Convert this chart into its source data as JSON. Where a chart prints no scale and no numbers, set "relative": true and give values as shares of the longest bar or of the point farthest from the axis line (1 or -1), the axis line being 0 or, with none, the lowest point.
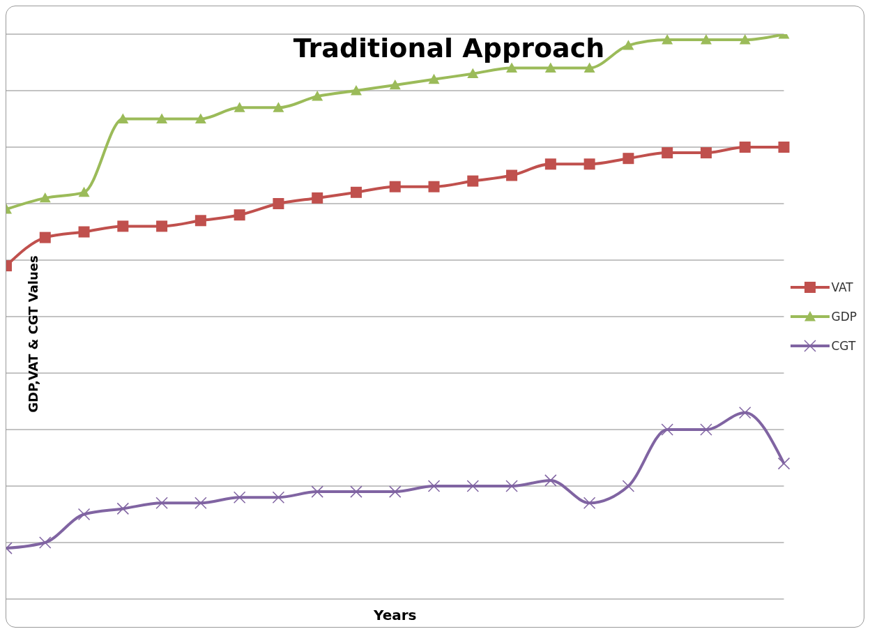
{
  "chart_data": {
    "type": "line",
    "title": "Traditional Approach",
    "xlabel": "Years",
    "ylabel": "GDP,VAT & CGT Values",
    "relative": true,
    "grid": "y",
    "legend": "right",
    "line_style": "solid",
    "categories": [
      null,
      null,
      null,
      null,
      null,
      null,
      null,
      null,
      null,
      null,
      null,
      null,
      null,
      null,
      null,
      null,
      null,
      null,
      null,
      null,
      null
    ],
    "series": [
      {
        "name": "VAT",
        "color": "#c0504d",
        "marker": "square",
        "values": [
          0.59,
          0.64,
          0.65,
          0.66,
          0.66,
          0.67,
          0.68,
          0.7,
          0.71,
          0.72,
          0.73,
          0.73,
          0.74,
          0.75,
          0.77,
          0.77,
          0.78,
          0.79,
          0.79,
          0.8,
          0.8
        ]
      },
      {
        "name": "GDP",
        "color": "#9bbb59",
        "marker": "triangle",
        "values": [
          0.69,
          0.71,
          0.72,
          0.85,
          0.85,
          0.85,
          0.87,
          0.87,
          0.89,
          0.9,
          0.91,
          0.92,
          0.93,
          0.94,
          0.94,
          0.94,
          0.98,
          0.99,
          0.99,
          0.99,
          1
        ]
      },
      {
        "name": "CGT",
        "color": "#8064a2",
        "marker": "cross",
        "values": [
          0.09,
          0.1,
          0.15,
          0.16,
          0.17,
          0.17,
          0.18,
          0.18,
          0.19,
          0.19,
          0.19,
          0.2,
          0.2,
          0.2,
          0.21,
          0.17,
          0.2,
          0.3,
          0.3,
          0.33,
          0.24
        ]
      }
    ]
  }
}
